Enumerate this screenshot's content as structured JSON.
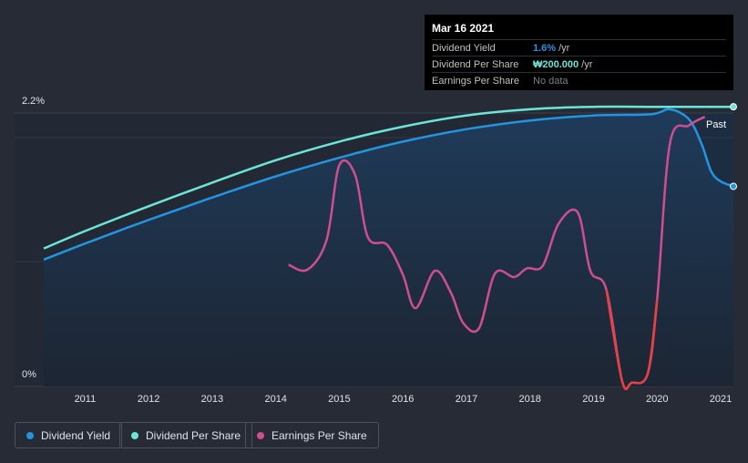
{
  "tooltip": {
    "date": "Mar 16 2021",
    "rows": [
      {
        "label": "Dividend Yield",
        "value": "1.6%",
        "unit": "/yr",
        "color": "#2394df"
      },
      {
        "label": "Dividend Per Share",
        "value": "₩200.000",
        "unit": "/yr",
        "color": "#6ce5d8"
      },
      {
        "label": "Earnings Per Share",
        "value": "No data",
        "unit": "",
        "color": "#7a7f89"
      }
    ]
  },
  "legend": [
    {
      "label": "Dividend Yield",
      "color": "#2394df"
    },
    {
      "label": "Dividend Per Share",
      "color": "#6ce5d8"
    },
    {
      "label": "Earnings Per Share",
      "color": "#d04e8f"
    }
  ],
  "past_label": "Past",
  "colors": {
    "background": "#262b36",
    "plot_fill": "#1c2c3f",
    "dividend_yield": "#2394df",
    "dividend_per_share": "#6ce5d8",
    "earnings_per_share": "#d04e8f",
    "eps_negative": "#e64141"
  },
  "chart_data": {
    "type": "line",
    "title": "",
    "xlabel": "",
    "ylabel": "",
    "xlim": [
      2010.35,
      2021.2
    ],
    "ylim": [
      0,
      2.2
    ],
    "y_tick_labels": [
      "2.2%",
      "0%"
    ],
    "x_ticks": [
      2011,
      2012,
      2013,
      2014,
      2015,
      2016,
      2017,
      2018,
      2019,
      2020,
      2021
    ],
    "x_tick_labels": [
      "2011",
      "2012",
      "2013",
      "2014",
      "2015",
      "2016",
      "2017",
      "2018",
      "2019",
      "2020",
      "2021"
    ],
    "series": [
      {
        "name": "Dividend Yield",
        "unit": "%",
        "x": [
          2010.35,
          2011,
          2012,
          2013,
          2014,
          2015,
          2016,
          2017,
          2018,
          2019,
          2019.9,
          2020.2,
          2020.5,
          2020.7,
          2020.85,
          2021.0,
          2021.2
        ],
        "y": [
          1.02,
          1.15,
          1.34,
          1.52,
          1.69,
          1.84,
          1.97,
          2.07,
          2.14,
          2.18,
          2.19,
          2.23,
          2.15,
          1.95,
          1.73,
          1.65,
          1.61
        ]
      },
      {
        "name": "Dividend Per Share",
        "unit": "₩",
        "x": [
          2010.35,
          2011,
          2012,
          2013,
          2014,
          2015,
          2016,
          2017,
          2018,
          2019,
          2020,
          2021.2
        ],
        "y": [
          1.11,
          1.25,
          1.45,
          1.64,
          1.82,
          1.97,
          2.09,
          2.18,
          2.23,
          2.25,
          2.25,
          2.25
        ]
      },
      {
        "name": "Earnings Per Share",
        "unit": "",
        "x": [
          2014.2,
          2014.5,
          2014.8,
          2015.0,
          2015.25,
          2015.45,
          2015.75,
          2016.0,
          2016.2,
          2016.5,
          2016.75,
          2016.95,
          2017.2,
          2017.45,
          2017.75,
          2017.95,
          2018.2,
          2018.45,
          2018.75,
          2018.95,
          2019.2,
          2019.45,
          2019.6,
          2019.85,
          2020.0,
          2020.2,
          2020.5,
          2020.75
        ],
        "y": [
          0.98,
          0.94,
          1.18,
          1.78,
          1.7,
          1.2,
          1.14,
          0.9,
          0.63,
          0.93,
          0.76,
          0.51,
          0.47,
          0.91,
          0.88,
          0.95,
          0.97,
          1.31,
          1.4,
          0.93,
          0.78,
          0.04,
          0.03,
          0.1,
          0.7,
          1.95,
          2.1,
          2.17
        ]
      }
    ],
    "tooltip_x": 2021.2
  }
}
